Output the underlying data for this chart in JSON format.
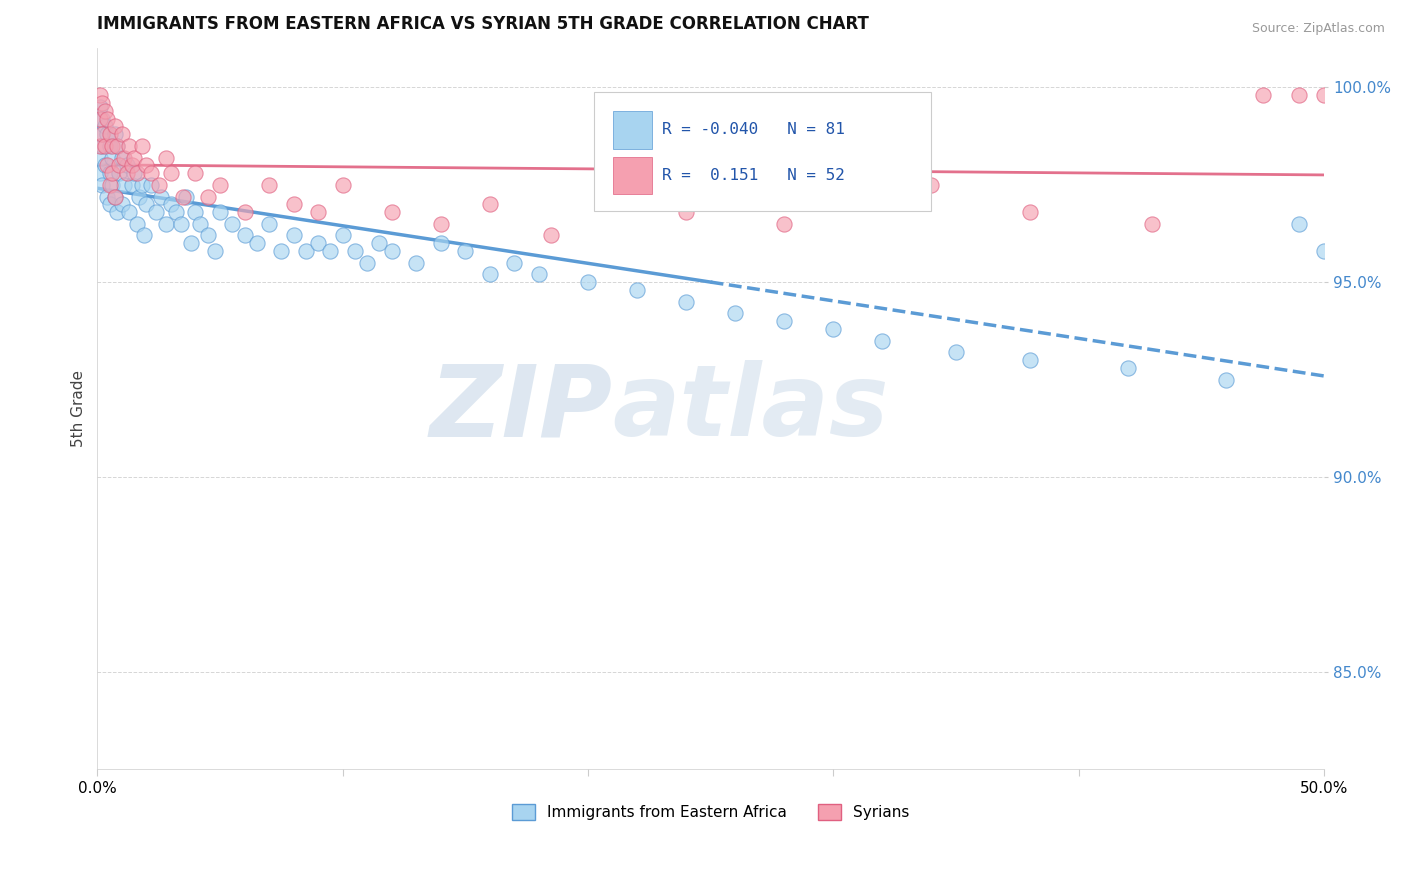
{
  "title": "IMMIGRANTS FROM EASTERN AFRICA VS SYRIAN 5TH GRADE CORRELATION CHART",
  "source_text": "Source: ZipAtlas.com",
  "ylabel": "5th Grade",
  "legend_label1": "Immigrants from Eastern Africa",
  "legend_label2": "Syrians",
  "r1": -0.04,
  "n1": 81,
  "r2": 0.151,
  "n2": 52,
  "color1": "#A8D4F0",
  "color2": "#F5A0B0",
  "color1_line": "#5B9BD5",
  "color2_line": "#E06080",
  "xlim": [
    0.0,
    0.5
  ],
  "ylim": [
    0.825,
    1.01
  ],
  "yticks": [
    0.85,
    0.9,
    0.95,
    1.0
  ],
  "ytick_labels": [
    "85.0%",
    "90.0%",
    "95.0%",
    "100.0%"
  ],
  "xticks": [
    0.0,
    0.1,
    0.2,
    0.3,
    0.4,
    0.5
  ],
  "xtick_labels": [
    "0.0%",
    "",
    "",
    "",
    "",
    "50.0%"
  ],
  "watermark_zip": "ZIP",
  "watermark_atlas": "atlas",
  "scatter1_x": [
    0.001,
    0.001,
    0.001,
    0.001,
    0.002,
    0.002,
    0.002,
    0.003,
    0.003,
    0.004,
    0.004,
    0.005,
    0.005,
    0.005,
    0.006,
    0.006,
    0.007,
    0.007,
    0.008,
    0.008,
    0.009,
    0.01,
    0.01,
    0.011,
    0.012,
    0.013,
    0.014,
    0.015,
    0.016,
    0.017,
    0.018,
    0.019,
    0.02,
    0.022,
    0.024,
    0.026,
    0.028,
    0.03,
    0.032,
    0.034,
    0.036,
    0.038,
    0.04,
    0.042,
    0.045,
    0.048,
    0.05,
    0.055,
    0.06,
    0.065,
    0.07,
    0.075,
    0.08,
    0.085,
    0.09,
    0.095,
    0.1,
    0.105,
    0.11,
    0.115,
    0.12,
    0.13,
    0.14,
    0.15,
    0.16,
    0.17,
    0.18,
    0.2,
    0.22,
    0.24,
    0.26,
    0.28,
    0.3,
    0.32,
    0.35,
    0.38,
    0.42,
    0.46,
    0.49,
    0.5
  ],
  "scatter1_y": [
    0.995,
    0.988,
    0.982,
    0.978,
    0.992,
    0.985,
    0.975,
    0.99,
    0.98,
    0.988,
    0.972,
    0.985,
    0.978,
    0.97,
    0.982,
    0.975,
    0.988,
    0.972,
    0.985,
    0.968,
    0.978,
    0.982,
    0.97,
    0.975,
    0.98,
    0.968,
    0.975,
    0.978,
    0.965,
    0.972,
    0.975,
    0.962,
    0.97,
    0.975,
    0.968,
    0.972,
    0.965,
    0.97,
    0.968,
    0.965,
    0.972,
    0.96,
    0.968,
    0.965,
    0.962,
    0.958,
    0.968,
    0.965,
    0.962,
    0.96,
    0.965,
    0.958,
    0.962,
    0.958,
    0.96,
    0.958,
    0.962,
    0.958,
    0.955,
    0.96,
    0.958,
    0.955,
    0.96,
    0.958,
    0.952,
    0.955,
    0.952,
    0.95,
    0.948,
    0.945,
    0.942,
    0.94,
    0.938,
    0.935,
    0.932,
    0.93,
    0.928,
    0.925,
    0.965,
    0.958
  ],
  "scatter2_x": [
    0.001,
    0.001,
    0.001,
    0.002,
    0.002,
    0.003,
    0.003,
    0.004,
    0.004,
    0.005,
    0.005,
    0.006,
    0.006,
    0.007,
    0.007,
    0.008,
    0.009,
    0.01,
    0.011,
    0.012,
    0.013,
    0.014,
    0.015,
    0.016,
    0.018,
    0.02,
    0.022,
    0.025,
    0.028,
    0.03,
    0.035,
    0.04,
    0.045,
    0.05,
    0.06,
    0.07,
    0.08,
    0.09,
    0.1,
    0.12,
    0.14,
    0.16,
    0.185,
    0.21,
    0.24,
    0.28,
    0.34,
    0.38,
    0.43,
    0.475,
    0.49,
    0.5
  ],
  "scatter2_y": [
    0.998,
    0.992,
    0.985,
    0.996,
    0.988,
    0.994,
    0.985,
    0.992,
    0.98,
    0.988,
    0.975,
    0.985,
    0.978,
    0.99,
    0.972,
    0.985,
    0.98,
    0.988,
    0.982,
    0.978,
    0.985,
    0.98,
    0.982,
    0.978,
    0.985,
    0.98,
    0.978,
    0.975,
    0.982,
    0.978,
    0.972,
    0.978,
    0.972,
    0.975,
    0.968,
    0.975,
    0.97,
    0.968,
    0.975,
    0.968,
    0.965,
    0.97,
    0.962,
    0.975,
    0.968,
    0.965,
    0.975,
    0.968,
    0.965,
    0.998,
    0.998,
    0.998
  ]
}
